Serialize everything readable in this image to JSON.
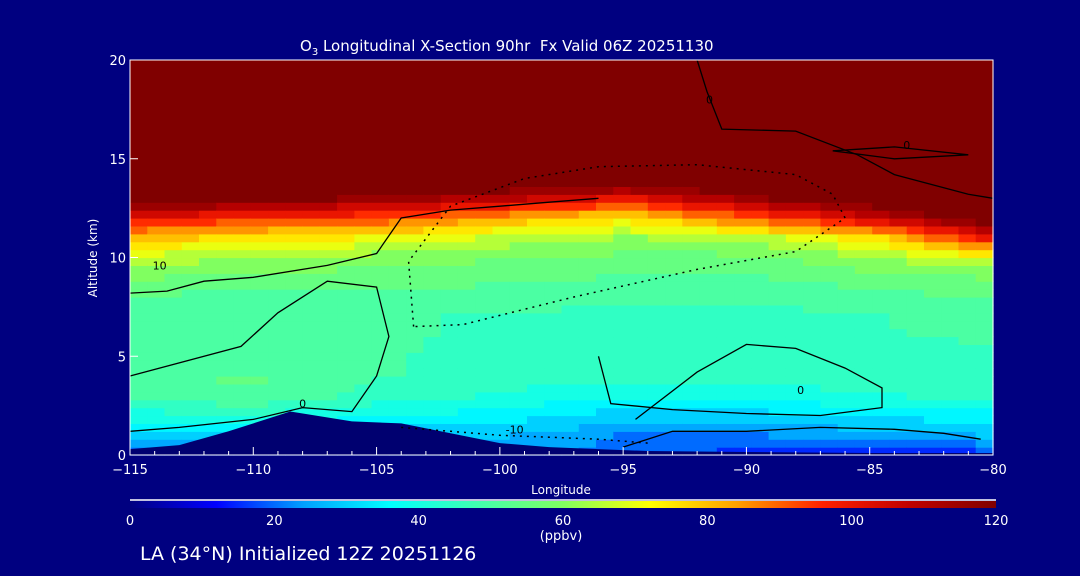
{
  "chart_data": {
    "type": "heatmap",
    "title_prefix": "O",
    "title_sub": "3",
    "title_rest": " Longitudinal X-Section 90hr  Fx Valid 06Z 20251130",
    "xlabel": "Longitude",
    "ylabel": "Altitude (km)",
    "xlim": [
      -115,
      -80
    ],
    "ylim": [
      0,
      20
    ],
    "xticks": [
      -115,
      -110,
      -105,
      -100,
      -95,
      -90,
      -85,
      -80
    ],
    "xtick_labels": [
      "−115",
      "−110",
      "−105",
      "−100",
      "−95",
      "−90",
      "−85",
      "−80"
    ],
    "yticks": [
      0,
      5,
      10,
      15,
      20
    ],
    "ytick_labels": [
      "0",
      "5",
      "10",
      "15",
      "20"
    ],
    "grid_lon": [
      -115,
      -110,
      -105,
      -100,
      -95,
      -90,
      -85,
      -80
    ],
    "grid_alt": [
      0,
      1,
      2,
      3,
      4,
      5,
      6,
      7,
      8,
      9,
      10,
      11,
      12,
      13,
      14,
      15,
      16,
      17,
      18,
      19,
      20
    ],
    "ozone_ppbv": [
      [
        15,
        20,
        20,
        25,
        20,
        15,
        15,
        15
      ],
      [
        30,
        32,
        30,
        28,
        22,
        22,
        25,
        28
      ],
      [
        40,
        42,
        38,
        35,
        30,
        30,
        33,
        35
      ],
      [
        50,
        52,
        45,
        42,
        38,
        40,
        42,
        44
      ],
      [
        52,
        53,
        48,
        45,
        44,
        44,
        45,
        46
      ],
      [
        50,
        50,
        48,
        46,
        45,
        45,
        46,
        47
      ],
      [
        50,
        49,
        48,
        47,
        46,
        46,
        47,
        48
      ],
      [
        50,
        49,
        48,
        47,
        46,
        46,
        47,
        50
      ],
      [
        52,
        50,
        50,
        50,
        48,
        48,
        50,
        53
      ],
      [
        58,
        56,
        55,
        54,
        52,
        52,
        55,
        58
      ],
      [
        66,
        62,
        60,
        58,
        56,
        56,
        62,
        70
      ],
      [
        80,
        75,
        72,
        66,
        62,
        64,
        75,
        100
      ],
      [
        100,
        95,
        92,
        82,
        75,
        90,
        105,
        125
      ],
      [
        125,
        122,
        115,
        110,
        100,
        115,
        125,
        130
      ],
      [
        130,
        130,
        130,
        130,
        130,
        130,
        130,
        130
      ],
      [
        130,
        130,
        130,
        130,
        130,
        130,
        130,
        130
      ],
      [
        130,
        130,
        130,
        130,
        130,
        130,
        130,
        130
      ],
      [
        130,
        130,
        130,
        130,
        130,
        130,
        130,
        130
      ],
      [
        130,
        130,
        130,
        130,
        130,
        130,
        130,
        130
      ],
      [
        130,
        130,
        130,
        130,
        130,
        130,
        130,
        130
      ],
      [
        130,
        130,
        130,
        130,
        130,
        130,
        130,
        130
      ]
    ],
    "terrain": {
      "lon": [
        -115,
        -113,
        -111,
        -108.5,
        -106,
        -104,
        -102,
        -100,
        -98,
        -96,
        -94,
        -90,
        -85,
        -80
      ],
      "alt": [
        0.3,
        0.5,
        1.2,
        2.2,
        1.7,
        1.6,
        1.1,
        0.6,
        0.4,
        0.3,
        0.2,
        0.15,
        0.1,
        0.1
      ]
    },
    "contours": [
      {
        "label": "10",
        "dashed": false,
        "label_at": [
          -113.8,
          9.4
        ],
        "lon": [
          -115,
          -113.5,
          -112,
          -110,
          -107,
          -105,
          -104,
          -102,
          -100,
          -98,
          -96
        ],
        "alt": [
          8.2,
          8.3,
          8.8,
          9.0,
          9.6,
          10.2,
          12.0,
          12.4,
          12.6,
          12.8,
          13.0
        ]
      },
      {
        "label": "0",
        "dashed": false,
        "label_at": [
          -108,
          2.4
        ],
        "lon": [
          -115,
          -113,
          -110,
          -108,
          -106,
          -105,
          -104.5,
          -105,
          -107,
          -109,
          -110.5,
          -115
        ],
        "alt": [
          1.2,
          1.4,
          1.8,
          2.4,
          2.2,
          4.0,
          6.0,
          8.5,
          8.8,
          7.2,
          5.5,
          4.0
        ]
      },
      {
        "label": "-10",
        "dashed": true,
        "label_at": [
          -99.4,
          1.1
        ],
        "lon": [
          -104,
          -102,
          -100,
          -98,
          -96,
          -94
        ],
        "alt": [
          1.4,
          1.2,
          1.0,
          0.9,
          0.8,
          0.6
        ]
      },
      {
        "label": "",
        "dashed": true,
        "label_at": [
          -99,
          9
        ],
        "lon": [
          -103.5,
          -103.7,
          -102,
          -99,
          -96,
          -92,
          -88,
          -86.5,
          -86,
          -88,
          -92,
          -97,
          -101.5,
          -103.5
        ],
        "alt": [
          6.5,
          9.8,
          12.6,
          14.0,
          14.6,
          14.7,
          14.2,
          13.2,
          12.0,
          10.3,
          9.4,
          8.0,
          6.6,
          6.5
        ]
      },
      {
        "label": "0",
        "dashed": false,
        "label_at": [
          -87.8,
          3.1
        ],
        "lon": [
          -94.5,
          -92,
          -90,
          -88,
          -86,
          -84.5,
          -84.5,
          -87,
          -90,
          -93,
          -95.5,
          -96
        ],
        "alt": [
          1.8,
          4.2,
          5.6,
          5.4,
          4.4,
          3.4,
          2.4,
          2.0,
          2.1,
          2.3,
          2.6,
          5.0
        ]
      },
      {
        "label": "0",
        "dashed": false,
        "label_at": [
          -83.5,
          15.5
        ],
        "lon": [
          -86.5,
          -84,
          -81,
          -84,
          -86.5
        ],
        "alt": [
          15.4,
          15.6,
          15.2,
          15.0,
          15.4
        ]
      },
      {
        "label": "0",
        "dashed": false,
        "label_at": [
          -91.5,
          17.8
        ],
        "lon": [
          -92,
          -91.6,
          -91,
          -88,
          -85.5,
          -84,
          -81,
          -80
        ],
        "alt": [
          20,
          18.4,
          16.5,
          16.4,
          15.2,
          14.2,
          13.2,
          13.0
        ]
      },
      {
        "label": "",
        "dashed": false,
        "label_at": [
          -81,
          12
        ],
        "lon": [
          -95,
          -93,
          -90,
          -87,
          -84,
          -82,
          -80.5
        ],
        "alt": [
          0.4,
          1.2,
          1.2,
          1.4,
          1.3,
          1.1,
          0.8
        ]
      }
    ],
    "colorbar": {
      "min": 0,
      "max": 120,
      "ticks": [
        0,
        20,
        40,
        60,
        80,
        100,
        120
      ],
      "tick_labels": [
        "0",
        "20",
        "40",
        "60",
        "80",
        "100",
        "120"
      ],
      "label": "(ppbv)",
      "colors": [
        "#000080",
        "#0000ff",
        "#00a0ff",
        "#00ffff",
        "#40ffb0",
        "#80ff60",
        "#ffff00",
        "#ffa000",
        "#ff2000",
        "#c00000",
        "#800000"
      ]
    },
    "footer": "LA (34°N) Initialized 12Z 20251126",
    "terrain_color": "#000070"
  }
}
